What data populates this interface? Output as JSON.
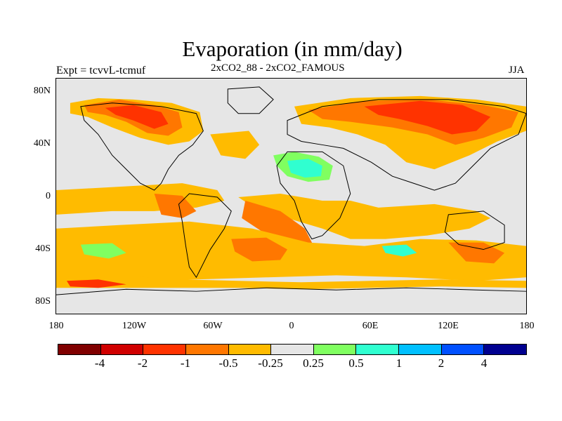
{
  "title": "Evaporation (in mm/day)",
  "expt_label": "Expt = tcvvL-tcmuf",
  "comparison_label": "2xCO2_88 - 2xCO2_FAMOUS",
  "season_label": "JJA",
  "lat_ticks": [
    "80N",
    "40N",
    "0",
    "40S",
    "80S"
  ],
  "lon_ticks": [
    "180",
    "120W",
    "60W",
    "0",
    "60E",
    "120E",
    "180"
  ],
  "colorbar": {
    "colors": [
      "#800000",
      "#d00000",
      "#ff3300",
      "#ff7700",
      "#ffbb00",
      "#e6e6e6",
      "#80ff60",
      "#30ffd0",
      "#00c0ff",
      "#0050ff",
      "#000090"
    ],
    "labels": [
      "-4",
      "-2",
      "-1",
      "-0.5",
      "-0.25",
      "0.25",
      "0.5",
      "1",
      "2",
      "4"
    ]
  },
  "field_colors": {
    "background": "#e6e6e6",
    "orange_light": "#ffbb00",
    "orange": "#ff7700",
    "red_orange": "#ff3300",
    "red": "#d00000",
    "green": "#80ff60",
    "cyan": "#30ffd0"
  }
}
